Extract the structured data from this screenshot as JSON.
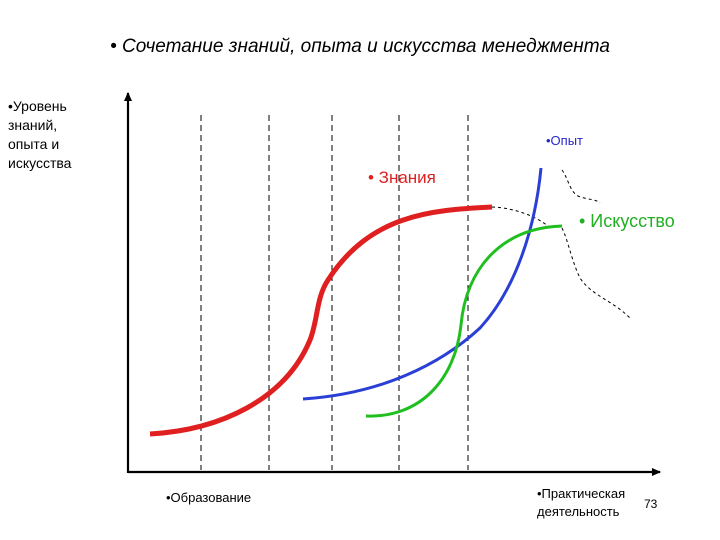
{
  "slide": {
    "title": "• Сочетание знаний, опыта и искусства менеджмента",
    "y_axis_label": "•Уровень\nзнаний,\nопыта и\nискусства",
    "x_axis_start_label": "•Образование",
    "x_axis_end_label": "•Практическая\nдеятельность",
    "page_number": "73"
  },
  "curves": {
    "knowledge_label": "• Знания",
    "experience_label": "•Опыт",
    "art_label": "• Искусство",
    "colors": {
      "knowledge": "#e02020",
      "experience": "#2a3fd6",
      "art": "#1fbf1f"
    }
  }
}
